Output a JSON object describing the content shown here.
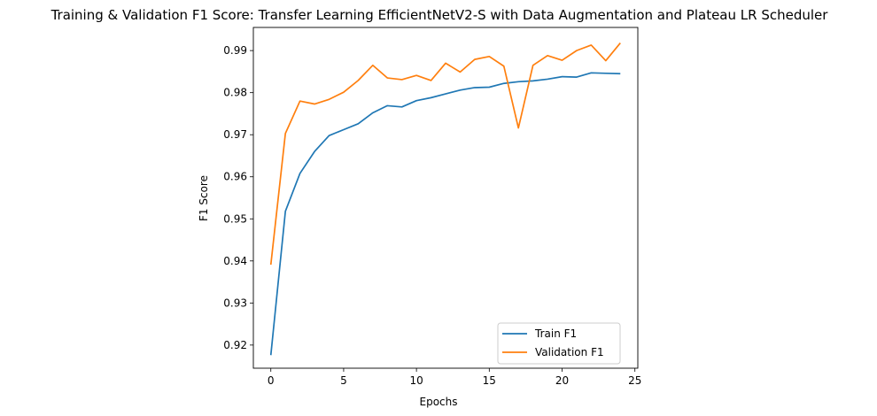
{
  "chart_data": {
    "type": "line",
    "title": "Training & Validation F1 Score: Transfer Learning EfficientNetV2-S with Data Augmentation and Plateau LR Scheduler",
    "xlabel": "Epochs",
    "ylabel": "F1 Score",
    "xlim": [
      -1.2,
      25.2
    ],
    "ylim": [
      0.9145,
      0.9955
    ],
    "xticks": [
      0,
      5,
      10,
      15,
      20,
      25
    ],
    "yticks": [
      0.92,
      0.93,
      0.94,
      0.95,
      0.96,
      0.97,
      0.98,
      0.99
    ],
    "grid": false,
    "legend_position": "lower-right",
    "x": [
      0,
      1,
      2,
      3,
      4,
      5,
      6,
      7,
      8,
      9,
      10,
      11,
      12,
      13,
      14,
      15,
      16,
      17,
      18,
      19,
      20,
      21,
      22,
      23,
      24
    ],
    "series": [
      {
        "name": "Train F1",
        "color": "#1f77b4",
        "values": [
          0.9176,
          0.9518,
          0.9608,
          0.966,
          0.9698,
          0.9712,
          0.9726,
          0.9752,
          0.9769,
          0.9766,
          0.9781,
          0.9788,
          0.9797,
          0.9806,
          0.9812,
          0.9813,
          0.9822,
          0.9826,
          0.9828,
          0.9832,
          0.9838,
          0.9837,
          0.9847,
          0.9846,
          0.9845
        ]
      },
      {
        "name": "Validation F1",
        "color": "#ff7f0e",
        "values": [
          0.9391,
          0.9703,
          0.978,
          0.9773,
          0.9784,
          0.9801,
          0.9829,
          0.9865,
          0.9835,
          0.9831,
          0.9841,
          0.9829,
          0.987,
          0.9849,
          0.9879,
          0.9886,
          0.9863,
          0.9716,
          0.9865,
          0.9888,
          0.9877,
          0.99,
          0.9913,
          0.9876,
          0.9918
        ]
      }
    ]
  }
}
